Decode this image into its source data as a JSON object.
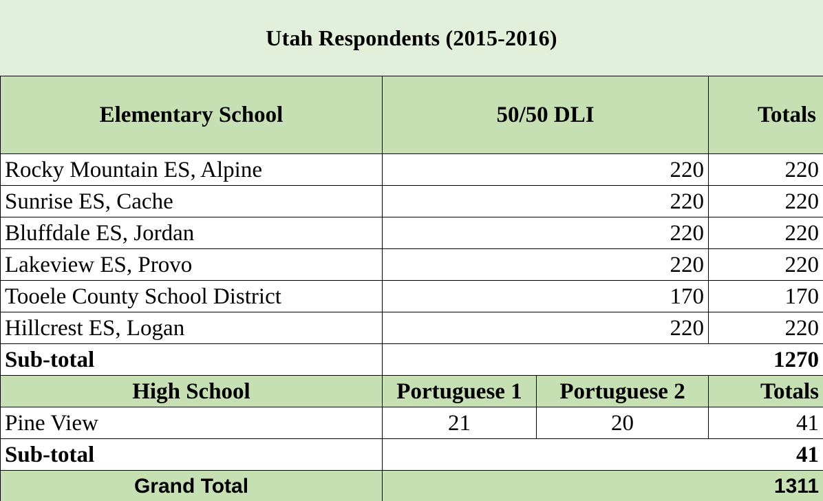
{
  "title": "Utah Respondents  (2015-2016)",
  "elementary": {
    "headers": {
      "school": "Elementary School",
      "program": "50/50 DLI",
      "totals": "Totals"
    },
    "rows": [
      {
        "school": "Rocky Mountain ES, Alpine",
        "dli": "220",
        "total": "220"
      },
      {
        "school": "Sunrise ES, Cache",
        "dli": "220",
        "total": "220"
      },
      {
        "school": "Bluffdale ES, Jordan",
        "dli": "220",
        "total": "220"
      },
      {
        "school": "Lakeview ES, Provo",
        "dli": "220",
        "total": "220"
      },
      {
        "school": "Tooele County School District",
        "dli": "170",
        "total": "170"
      },
      {
        "school": "Hillcrest ES, Logan",
        "dli": "220",
        "total": "220"
      }
    ],
    "subtotal_label": "Sub-total",
    "subtotal_value": "1270"
  },
  "high": {
    "headers": {
      "school": "High School",
      "p1": "Portuguese 1",
      "p2": "Portuguese 2",
      "totals": "Totals"
    },
    "rows": [
      {
        "school": "Pine View",
        "p1": "21",
        "p2": "20",
        "total": "41"
      }
    ],
    "subtotal_label": "Sub-total",
    "subtotal_value": "41"
  },
  "grand_total": {
    "label": "Grand Total",
    "value": "1311"
  }
}
